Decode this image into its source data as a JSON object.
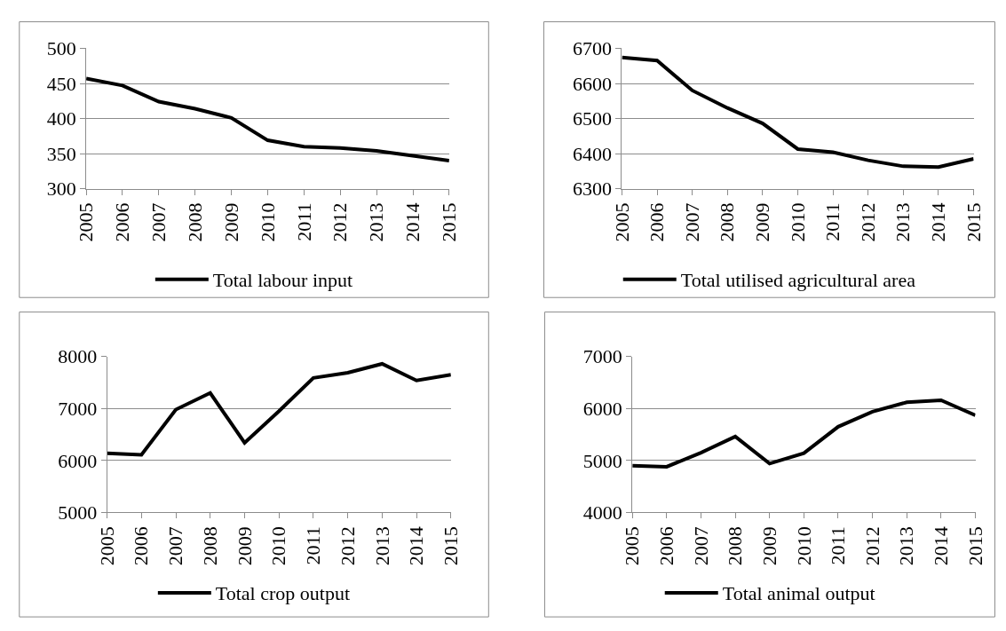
{
  "chart_data": [
    {
      "type": "line",
      "categories": [
        "2005",
        "2006",
        "2007",
        "2008",
        "2009",
        "2010",
        "2011",
        "2012",
        "2013",
        "2014",
        "2015"
      ],
      "ylim": [
        300,
        500
      ],
      "yticks": [
        300,
        350,
        400,
        450,
        500
      ],
      "grid": "y",
      "legend": "bottom",
      "series": [
        {
          "name": "Total labour input",
          "color": "#000000",
          "values": [
            457,
            447,
            424,
            414,
            401,
            369,
            360,
            358,
            354,
            347,
            340
          ]
        }
      ]
    },
    {
      "type": "line",
      "categories": [
        "2005",
        "2006",
        "2007",
        "2008",
        "2009",
        "2010",
        "2011",
        "2012",
        "2013",
        "2014",
        "2015"
      ],
      "ylim": [
        6300,
        6700
      ],
      "yticks": [
        6300,
        6400,
        6500,
        6600,
        6700
      ],
      "grid": "y",
      "legend": "bottom",
      "series": [
        {
          "name": "Total utilised agricultural area",
          "color": "#000000",
          "values": [
            6674,
            6665,
            6580,
            6530,
            6486,
            6413,
            6404,
            6381,
            6364,
            6362,
            6385
          ]
        }
      ]
    },
    {
      "type": "line",
      "categories": [
        "2005",
        "2006",
        "2007",
        "2008",
        "2009",
        "2010",
        "2011",
        "2012",
        "2013",
        "2014",
        "2015"
      ],
      "ylim": [
        5000,
        8000
      ],
      "yticks": [
        5000,
        6000,
        7000,
        8000
      ],
      "grid": "y",
      "legend": "bottom",
      "series": [
        {
          "name": "Total crop output",
          "color": "#000000",
          "values": [
            6140,
            6110,
            6980,
            7300,
            6340,
            6950,
            7590,
            7690,
            7860,
            7540,
            7650
          ]
        }
      ]
    },
    {
      "type": "line",
      "categories": [
        "2005",
        "2006",
        "2007",
        "2008",
        "2009",
        "2010",
        "2011",
        "2012",
        "2013",
        "2014",
        "2015"
      ],
      "ylim": [
        4000,
        7000
      ],
      "yticks": [
        4000,
        5000,
        6000,
        7000
      ],
      "grid": "y",
      "legend": "bottom",
      "series": [
        {
          "name": "Total animal output",
          "color": "#000000",
          "values": [
            4900,
            4880,
            5150,
            5460,
            4940,
            5140,
            5650,
            5940,
            6120,
            6160,
            5870
          ]
        }
      ]
    }
  ]
}
